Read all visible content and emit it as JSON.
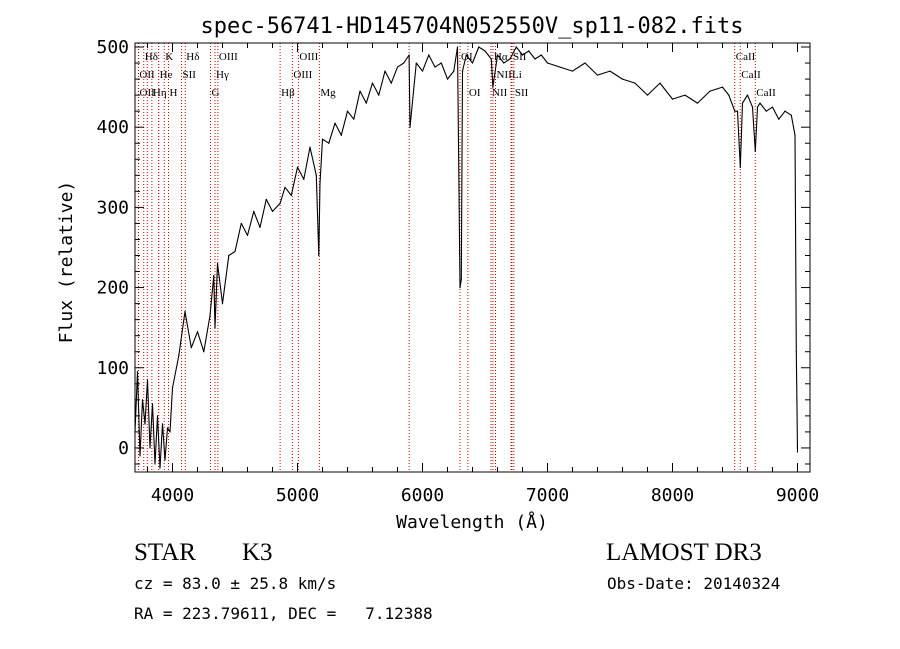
{
  "chart_data": {
    "type": "line",
    "title": "spec-56741-HD145704N052550V_sp11-082.fits",
    "xlabel": "Wavelength (Å)",
    "ylabel": "Flux (relative)",
    "xlim": [
      3700,
      9100
    ],
    "ylim": [
      -30,
      505
    ],
    "xticks": [
      4000,
      5000,
      6000,
      7000,
      8000,
      9000
    ],
    "yticks": [
      0,
      100,
      200,
      300,
      400,
      500
    ],
    "series": [
      {
        "name": "Flux",
        "x": [
          3700,
          3720,
          3740,
          3760,
          3780,
          3800,
          3820,
          3840,
          3860,
          3880,
          3900,
          3920,
          3940,
          3960,
          3980,
          4000,
          4050,
          4100,
          4150,
          4200,
          4250,
          4300,
          4330,
          4340,
          4360,
          4400,
          4450,
          4500,
          4550,
          4600,
          4650,
          4700,
          4750,
          4800,
          4861,
          4900,
          4950,
          5000,
          5050,
          5100,
          5150,
          5170,
          5180,
          5200,
          5250,
          5300,
          5350,
          5400,
          5450,
          5500,
          5550,
          5600,
          5650,
          5700,
          5750,
          5800,
          5850,
          5893,
          5900,
          5950,
          6000,
          6050,
          6100,
          6150,
          6200,
          6250,
          6280,
          6300,
          6310,
          6320,
          6350,
          6400,
          6450,
          6500,
          6550,
          6563,
          6600,
          6650,
          6700,
          6750,
          6800,
          6850,
          6900,
          6950,
          7000,
          7100,
          7200,
          7300,
          7400,
          7500,
          7600,
          7700,
          7800,
          7900,
          8000,
          8100,
          8200,
          8300,
          8400,
          8450,
          8498,
          8520,
          8542,
          8560,
          8600,
          8640,
          8662,
          8680,
          8700,
          8750,
          8800,
          8850,
          8900,
          8950,
          8980,
          8990,
          8995,
          9000
        ],
        "values": [
          20,
          95,
          -10,
          60,
          30,
          85,
          0,
          55,
          -20,
          40,
          -25,
          30,
          -15,
          25,
          20,
          75,
          115,
          170,
          125,
          145,
          120,
          165,
          215,
          150,
          230,
          180,
          240,
          245,
          280,
          265,
          295,
          275,
          310,
          295,
          305,
          325,
          315,
          350,
          335,
          375,
          340,
          240,
          330,
          385,
          380,
          405,
          390,
          420,
          410,
          445,
          430,
          455,
          440,
          470,
          455,
          475,
          480,
          490,
          400,
          480,
          470,
          490,
          475,
          480,
          460,
          470,
          500,
          200,
          210,
          470,
          490,
          480,
          500,
          495,
          485,
          450,
          490,
          480,
          485,
          500,
          490,
          495,
          485,
          490,
          480,
          475,
          470,
          480,
          465,
          470,
          460,
          455,
          440,
          455,
          435,
          440,
          430,
          445,
          450,
          440,
          420,
          420,
          350,
          430,
          440,
          425,
          370,
          425,
          430,
          420,
          425,
          410,
          420,
          415,
          390,
          120,
          60,
          -5
        ]
      }
    ],
    "line_markers": [
      {
        "label": "Hδ",
        "x": 3770,
        "row": 0
      },
      {
        "label": "K",
        "x": 3934,
        "row": 0
      },
      {
        "label": "Hδ",
        "x": 4102,
        "row": 0
      },
      {
        "label": "OIII",
        "x": 4363,
        "row": 0
      },
      {
        "label": "OIII",
        "x": 5007,
        "row": 0
      },
      {
        "label": "OI",
        "x": 6300,
        "row": 0
      },
      {
        "label": "Hα",
        "x": 6563,
        "row": 0
      },
      {
        "label": "SII",
        "x": 6716,
        "row": 0
      },
      {
        "label": "CaII",
        "x": 8498,
        "row": 0
      },
      {
        "label": "OII",
        "x": 3727,
        "row": 1
      },
      {
        "label": "He",
        "x": 3889,
        "row": 1
      },
      {
        "label": "SII",
        "x": 4072,
        "row": 1
      },
      {
        "label": "Hγ",
        "x": 4340,
        "row": 1
      },
      {
        "label": "OIII",
        "x": 4959,
        "row": 1
      },
      {
        "label": "NII",
        "x": 6584,
        "row": 1
      },
      {
        "label": "Li",
        "x": 6708,
        "row": 1
      },
      {
        "label": "CaII",
        "x": 8542,
        "row": 1
      },
      {
        "label": "OII",
        "x": 3728,
        "row": 2
      },
      {
        "label": "Hη",
        "x": 3835,
        "row": 2
      },
      {
        "label": "H",
        "x": 3968,
        "row": 2
      },
      {
        "label": "G",
        "x": 4304,
        "row": 2
      },
      {
        "label": "Hβ",
        "x": 4861,
        "row": 2
      },
      {
        "label": "Mg",
        "x": 5175,
        "row": 2
      },
      {
        "label": "OI",
        "x": 6363,
        "row": 2
      },
      {
        "label": "NII",
        "x": 6548,
        "row": 2
      },
      {
        "label": "SII",
        "x": 6731,
        "row": 2
      },
      {
        "label": "CaII",
        "x": 8662,
        "row": 2
      }
    ],
    "extra_line_positions": [
      3798,
      3889,
      5893
    ],
    "grid": false,
    "line_color": "#000000",
    "marker_color": "#cc0000"
  },
  "info": {
    "object_class": "STAR",
    "subclass": "K3",
    "survey": "LAMOST DR3",
    "cz": "cz = 83.0 ± 25.8 km/s",
    "obs_date": "Obs-Date: 20140324",
    "coords": "RA = 223.79611, DEC =   7.12388"
  }
}
